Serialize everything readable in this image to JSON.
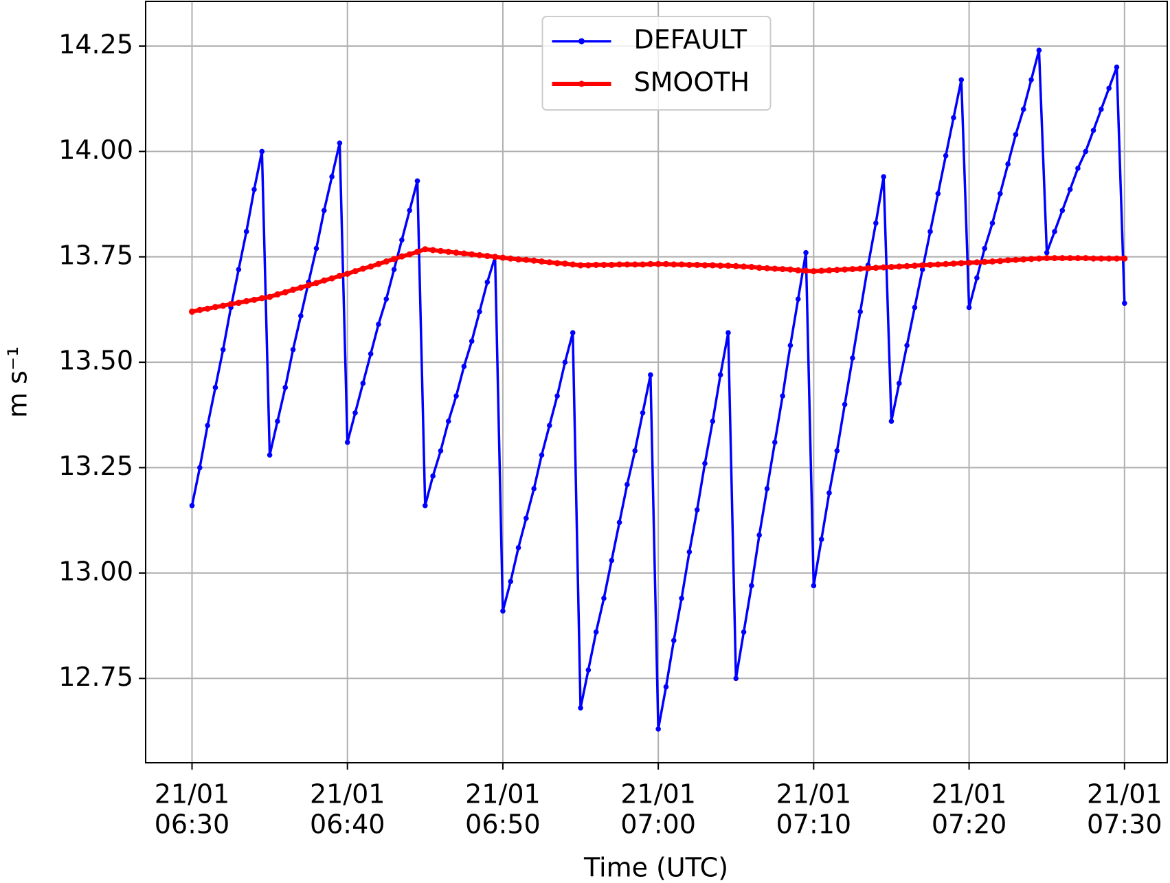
{
  "chart_data": {
    "type": "line",
    "xlabel": "Time (UTC)",
    "ylabel": "m s⁻¹",
    "x": [
      "06:30:00",
      "06:30:30",
      "06:31:00",
      "06:31:30",
      "06:32:00",
      "06:32:30",
      "06:33:00",
      "06:33:30",
      "06:34:00",
      "06:34:30",
      "06:35:00",
      "06:35:30",
      "06:36:00",
      "06:36:30",
      "06:37:00",
      "06:37:30",
      "06:38:00",
      "06:38:30",
      "06:39:00",
      "06:39:30",
      "06:40:00",
      "06:40:30",
      "06:41:00",
      "06:41:30",
      "06:42:00",
      "06:42:30",
      "06:43:00",
      "06:43:30",
      "06:44:00",
      "06:44:30",
      "06:45:00",
      "06:45:30",
      "06:46:00",
      "06:46:30",
      "06:47:00",
      "06:47:30",
      "06:48:00",
      "06:48:30",
      "06:49:00",
      "06:49:30",
      "06:50:00",
      "06:50:30",
      "06:51:00",
      "06:51:30",
      "06:52:00",
      "06:52:30",
      "06:53:00",
      "06:53:30",
      "06:54:00",
      "06:54:30",
      "06:55:00",
      "06:55:30",
      "06:56:00",
      "06:56:30",
      "06:57:00",
      "06:57:30",
      "06:58:00",
      "06:58:30",
      "06:59:00",
      "06:59:30",
      "07:00:00",
      "07:00:30",
      "07:01:00",
      "07:01:30",
      "07:02:00",
      "07:02:30",
      "07:03:00",
      "07:03:30",
      "07:04:00",
      "07:04:30",
      "07:05:00",
      "07:05:30",
      "07:06:00",
      "07:06:30",
      "07:07:00",
      "07:07:30",
      "07:08:00",
      "07:08:30",
      "07:09:00",
      "07:09:30",
      "07:10:00",
      "07:10:30",
      "07:11:00",
      "07:11:30",
      "07:12:00",
      "07:12:30",
      "07:13:00",
      "07:13:30",
      "07:14:00",
      "07:14:30",
      "07:15:00",
      "07:15:30",
      "07:16:00",
      "07:16:30",
      "07:17:00",
      "07:17:30",
      "07:18:00",
      "07:18:30",
      "07:19:00",
      "07:19:30",
      "07:20:00",
      "07:20:30",
      "07:21:00",
      "07:21:30",
      "07:22:00",
      "07:22:30",
      "07:23:00",
      "07:23:30",
      "07:24:00",
      "07:24:30",
      "07:25:00",
      "07:25:30",
      "07:26:00",
      "07:26:30",
      "07:27:00",
      "07:27:30",
      "07:28:00",
      "07:28:30",
      "07:29:00",
      "07:29:30",
      "07:30:00"
    ],
    "series": [
      {
        "name": "DEFAULT",
        "color": "#0000ff",
        "values": [
          13.16,
          13.25,
          13.35,
          13.44,
          13.53,
          13.63,
          13.72,
          13.81,
          13.91,
          14.0,
          13.28,
          13.36,
          13.44,
          13.53,
          13.61,
          13.69,
          13.77,
          13.86,
          13.94,
          14.02,
          13.31,
          13.38,
          13.45,
          13.52,
          13.59,
          13.65,
          13.72,
          13.79,
          13.86,
          13.93,
          13.16,
          13.23,
          13.29,
          13.36,
          13.42,
          13.49,
          13.55,
          13.62,
          13.69,
          13.75,
          12.91,
          12.98,
          13.06,
          13.13,
          13.2,
          13.28,
          13.35,
          13.42,
          13.5,
          13.57,
          12.68,
          12.77,
          12.86,
          12.94,
          13.03,
          13.12,
          13.21,
          13.29,
          13.38,
          13.47,
          12.63,
          12.73,
          12.84,
          12.94,
          13.05,
          13.15,
          13.26,
          13.36,
          13.47,
          13.57,
          12.75,
          12.86,
          12.97,
          13.09,
          13.2,
          13.31,
          13.42,
          13.54,
          13.65,
          13.76,
          12.97,
          13.08,
          13.19,
          13.29,
          13.4,
          13.51,
          13.62,
          13.73,
          13.83,
          13.94,
          13.36,
          13.45,
          13.54,
          13.63,
          13.72,
          13.81,
          13.9,
          13.99,
          14.08,
          14.17,
          13.63,
          13.7,
          13.77,
          13.83,
          13.9,
          13.97,
          14.04,
          14.1,
          14.17,
          14.24,
          13.76,
          13.81,
          13.86,
          13.91,
          13.96,
          14.0,
          14.05,
          14.1,
          14.15,
          14.2,
          13.64
        ]
      },
      {
        "name": "SMOOTH",
        "color": "#ff0000",
        "values": [
          13.62,
          13.624,
          13.627,
          13.631,
          13.634,
          13.638,
          13.641,
          13.645,
          13.648,
          13.652,
          13.655,
          13.661,
          13.666,
          13.672,
          13.677,
          13.683,
          13.688,
          13.694,
          13.699,
          13.705,
          13.71,
          13.716,
          13.722,
          13.727,
          13.733,
          13.739,
          13.745,
          13.751,
          13.756,
          13.762,
          13.768,
          13.766,
          13.764,
          13.762,
          13.76,
          13.758,
          13.756,
          13.754,
          13.752,
          13.75,
          13.748,
          13.746,
          13.744,
          13.743,
          13.741,
          13.739,
          13.737,
          13.735,
          13.734,
          13.732,
          13.73,
          13.73,
          13.731,
          13.731,
          13.731,
          13.732,
          13.732,
          13.732,
          13.732,
          13.733,
          13.733,
          13.733,
          13.732,
          13.732,
          13.731,
          13.731,
          13.73,
          13.73,
          13.729,
          13.729,
          13.728,
          13.727,
          13.726,
          13.724,
          13.723,
          13.722,
          13.721,
          13.72,
          13.718,
          13.717,
          13.716,
          13.717,
          13.718,
          13.719,
          13.72,
          13.721,
          13.722,
          13.723,
          13.724,
          13.725,
          13.726,
          13.727,
          13.728,
          13.729,
          13.73,
          13.731,
          13.732,
          13.733,
          13.734,
          13.735,
          13.736,
          13.737,
          13.738,
          13.739,
          13.74,
          13.742,
          13.743,
          13.744,
          13.745,
          13.746,
          13.747,
          13.747,
          13.747,
          13.747,
          13.747,
          13.747,
          13.746,
          13.746,
          13.746,
          13.746,
          13.746
        ]
      }
    ],
    "xlim": [
      "06:27:01",
      "07:32:45"
    ],
    "xticks": [
      {
        "value": "06:30:00",
        "label": [
          "21/01",
          "06:30"
        ]
      },
      {
        "value": "06:40:00",
        "label": [
          "21/01",
          "06:40"
        ]
      },
      {
        "value": "06:50:00",
        "label": [
          "21/01",
          "06:50"
        ]
      },
      {
        "value": "07:00:00",
        "label": [
          "21/01",
          "07:00"
        ]
      },
      {
        "value": "07:10:00",
        "label": [
          "21/01",
          "07:10"
        ]
      },
      {
        "value": "07:20:00",
        "label": [
          "21/01",
          "07:20"
        ]
      },
      {
        "value": "07:30:00",
        "label": [
          "21/01",
          "07:30"
        ]
      }
    ],
    "ylim": [
      12.55,
      14.356
    ],
    "yticks": [
      {
        "value": 12.75,
        "label": "12.75"
      },
      {
        "value": 13,
        "label": "13.00"
      },
      {
        "value": 13.25,
        "label": "13.25"
      },
      {
        "value": 13.5,
        "label": "13.50"
      },
      {
        "value": 13.75,
        "label": "13.75"
      },
      {
        "value": 14,
        "label": "14.00"
      },
      {
        "value": 14.25,
        "label": "14.25"
      }
    ],
    "grid": true,
    "legend": "upper center"
  }
}
